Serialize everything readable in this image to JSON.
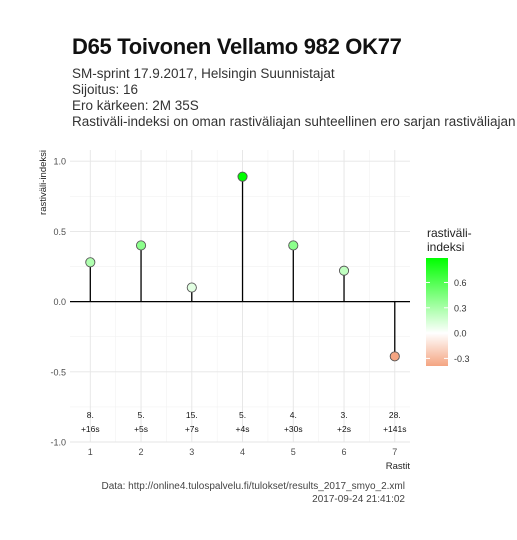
{
  "header": {
    "title": "D65 Toivonen Vellamo 982 OK77",
    "subtitle_lines": [
      "SM-sprint 17.9.2017, Helsingin Suunnistajat",
      "Sijoitus: 16",
      "Ero kärkeen: 2M 35S",
      "Rastiväli-indeksi on oman rastiväliajan suhteellinen ero sarjan rastiväliajan kes"
    ]
  },
  "footer": {
    "source": "Data: http://online4.tulospalvelu.fi/tulokset/results_2017_smyo_2.xml",
    "timestamp": "2017-09-24 21:41:02"
  },
  "chart_data": {
    "type": "lollipop",
    "xlabel": "Rastit",
    "ylabel": "rastiväli-indeksi",
    "x": [
      1,
      2,
      3,
      4,
      5,
      6,
      7
    ],
    "values": [
      0.28,
      0.4,
      0.1,
      0.89,
      0.4,
      0.22,
      -0.39
    ],
    "annotations": [
      {
        "rank": "8.",
        "delta": "+16s"
      },
      {
        "rank": "5.",
        "delta": "+5s"
      },
      {
        "rank": "15.",
        "delta": "+7s"
      },
      {
        "rank": "5.",
        "delta": "+4s"
      },
      {
        "rank": "4.",
        "delta": "+30s"
      },
      {
        "rank": "3.",
        "delta": "+2s"
      },
      {
        "rank": "28.",
        "delta": "+141s"
      }
    ],
    "xlim": [
      0.6,
      7.3
    ],
    "ylim": [
      -1.0,
      1.08
    ],
    "y_ticks": [
      -1.0,
      -0.5,
      0.0,
      0.5,
      1.0
    ],
    "y_tick_labels": [
      "-1.0",
      "-0.5",
      "0.0",
      "0.5",
      "1.0"
    ],
    "x_ticks": [
      1,
      2,
      3,
      4,
      5,
      6,
      7
    ],
    "x_tick_labels": [
      "1",
      "2",
      "3",
      "4",
      "5",
      "6",
      "7"
    ],
    "grid": true,
    "legend": {
      "title_lines": [
        "rastiväli-",
        "indeksi"
      ],
      "placement": "right",
      "range": [
        -0.39,
        0.89
      ],
      "ticks": [
        0.6,
        0.3,
        0.0,
        -0.3
      ],
      "tick_labels": [
        "0.6",
        "0.3",
        "0.0",
        "-0.3"
      ],
      "colors": {
        "low": "#f4a582",
        "mid": "#ffffff",
        "high": "#00ff00"
      }
    },
    "colors": {
      "stem": "#000000",
      "point_outline": "#555555",
      "grid": "#e5e5e5"
    }
  }
}
